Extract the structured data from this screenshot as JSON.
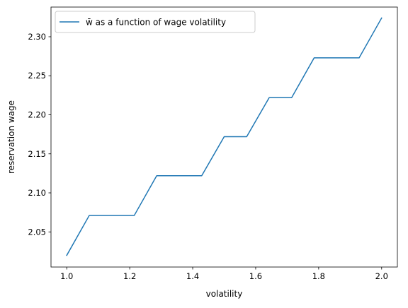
{
  "chart_data": {
    "type": "line",
    "title": "",
    "xlabel": "volatility",
    "ylabel": "reservation wage",
    "xlim": [
      0.95,
      2.05
    ],
    "ylim": [
      2.005,
      2.338
    ],
    "x_ticks": [
      1.0,
      1.2,
      1.4,
      1.6,
      1.8,
      2.0
    ],
    "x_tick_labels": [
      "1.0",
      "1.2",
      "1.4",
      "1.6",
      "1.8",
      "2.0"
    ],
    "y_ticks": [
      2.05,
      2.1,
      2.15,
      2.2,
      2.25,
      2.3
    ],
    "y_tick_labels": [
      "2.05",
      "2.10",
      "2.15",
      "2.20",
      "2.25",
      "2.30"
    ],
    "grid": false,
    "legend": {
      "position": "upper left"
    },
    "series": [
      {
        "name": "w̄ as a function of wage volatility",
        "color": "#1f77b4",
        "x": [
          1.0,
          1.0714,
          1.1429,
          1.2143,
          1.2857,
          1.3571,
          1.4286,
          1.5,
          1.5714,
          1.6429,
          1.7143,
          1.7857,
          1.8571,
          1.9286,
          2.0
        ],
        "y": [
          2.02,
          2.071,
          2.071,
          2.071,
          2.122,
          2.122,
          2.122,
          2.172,
          2.172,
          2.222,
          2.222,
          2.273,
          2.273,
          2.273,
          2.324
        ]
      }
    ]
  }
}
